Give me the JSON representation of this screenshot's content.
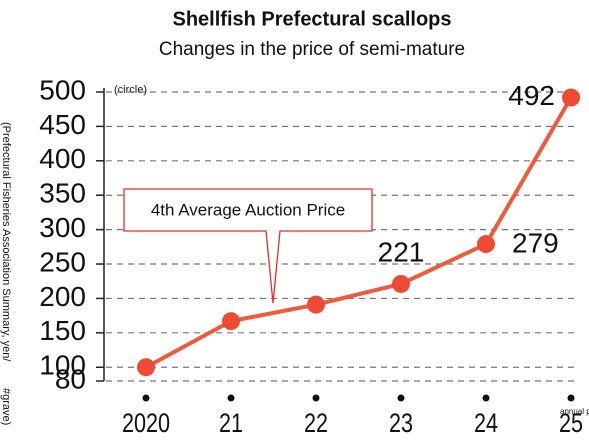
{
  "chart_data": {
    "type": "line",
    "title": "Shellfish Prefectural scallops",
    "subtitle": "Changes in the price of semi-mature",
    "y_label": "(Prefectural Fisheries Association Summary, yen/",
    "y_label_unit": "#grave)",
    "unit_note": "(circle)",
    "annotation": "4th Average Auction Price",
    "x_note": "annual p",
    "categories": [
      "2020",
      "21",
      "22",
      "23",
      "24",
      "25"
    ],
    "values": [
      100,
      167,
      191,
      221,
      279,
      492
    ],
    "value_labels": [
      null,
      null,
      null,
      "221",
      "279",
      "492"
    ],
    "color": "#ef5a3a",
    "ylim": [
      80,
      500
    ],
    "yticks": [
      80,
      100,
      150,
      200,
      250,
      300,
      350,
      400,
      450,
      500
    ],
    "grid": true
  }
}
